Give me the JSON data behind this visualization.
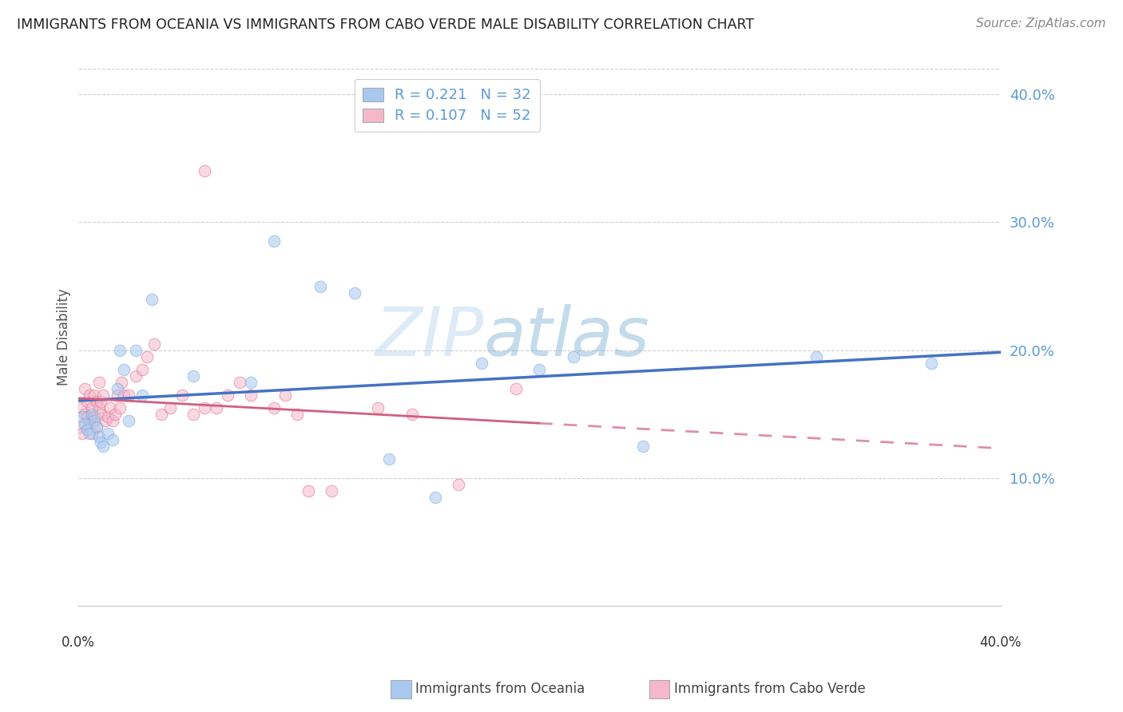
{
  "title": "IMMIGRANTS FROM OCEANIA VS IMMIGRANTS FROM CABO VERDE MALE DISABILITY CORRELATION CHART",
  "source": "Source: ZipAtlas.com",
  "ylabel": "Male Disability",
  "legend_label_1": "Immigrants from Oceania",
  "legend_label_2": "Immigrants from Cabo Verde",
  "oceania_color": "#a8c8f0",
  "oceania_edge_color": "#7aaedd",
  "cabo_verde_color": "#f5b8cb",
  "cabo_verde_edge_color": "#e0708e",
  "line_oceania_color": "#4472c4",
  "line_cabo_verde_color": "#d06080",
  "x_lim": [
    0.0,
    0.4
  ],
  "y_lim": [
    0.0,
    0.42
  ],
  "y_ticks": [
    0.0,
    0.1,
    0.2,
    0.3,
    0.4
  ],
  "y_tick_labels": [
    "",
    "10.0%",
    "20.0%",
    "30.0%",
    "40.0%"
  ],
  "R_oceania": 0.221,
  "N_oceania": 32,
  "R_cabo_verde": 0.107,
  "N_cabo_verde": 52,
  "oceania_x": [
    0.002,
    0.003,
    0.004,
    0.005,
    0.006,
    0.007,
    0.008,
    0.009,
    0.01,
    0.011,
    0.013,
    0.015,
    0.017,
    0.018,
    0.02,
    0.022,
    0.025,
    0.028,
    0.032,
    0.05,
    0.075,
    0.085,
    0.105,
    0.12,
    0.135,
    0.155,
    0.175,
    0.2,
    0.215,
    0.245,
    0.32,
    0.37
  ],
  "oceania_y": [
    0.148,
    0.142,
    0.138,
    0.135,
    0.15,
    0.145,
    0.14,
    0.132,
    0.128,
    0.125,
    0.135,
    0.13,
    0.17,
    0.2,
    0.185,
    0.145,
    0.2,
    0.165,
    0.24,
    0.18,
    0.175,
    0.285,
    0.25,
    0.245,
    0.115,
    0.085,
    0.19,
    0.185,
    0.195,
    0.125,
    0.195,
    0.19
  ],
  "cabo_verde_x": [
    0.001,
    0.002,
    0.002,
    0.003,
    0.003,
    0.004,
    0.004,
    0.005,
    0.005,
    0.006,
    0.006,
    0.007,
    0.007,
    0.008,
    0.008,
    0.009,
    0.009,
    0.01,
    0.01,
    0.011,
    0.012,
    0.013,
    0.014,
    0.015,
    0.016,
    0.017,
    0.018,
    0.019,
    0.02,
    0.022,
    0.025,
    0.028,
    0.03,
    0.033,
    0.036,
    0.04,
    0.045,
    0.05,
    0.055,
    0.06,
    0.065,
    0.07,
    0.075,
    0.085,
    0.09,
    0.095,
    0.1,
    0.11,
    0.13,
    0.145,
    0.165,
    0.19
  ],
  "cabo_verde_y": [
    0.14,
    0.135,
    0.155,
    0.15,
    0.17,
    0.148,
    0.16,
    0.145,
    0.165,
    0.135,
    0.155,
    0.148,
    0.165,
    0.14,
    0.16,
    0.155,
    0.175,
    0.15,
    0.16,
    0.165,
    0.145,
    0.148,
    0.155,
    0.145,
    0.15,
    0.165,
    0.155,
    0.175,
    0.165,
    0.165,
    0.18,
    0.185,
    0.195,
    0.205,
    0.15,
    0.155,
    0.165,
    0.15,
    0.155,
    0.155,
    0.165,
    0.175,
    0.165,
    0.155,
    0.165,
    0.15,
    0.09,
    0.09,
    0.155,
    0.15,
    0.095,
    0.17
  ],
  "cabo_verde_outlier_x": [
    0.055
  ],
  "cabo_verde_outlier_y": [
    0.34
  ],
  "watermark_zip": "ZIP",
  "watermark_atlas": "atlas",
  "background_color": "#ffffff",
  "grid_color": "#d0d0d0",
  "marker_size": 110,
  "marker_alpha": 0.55
}
